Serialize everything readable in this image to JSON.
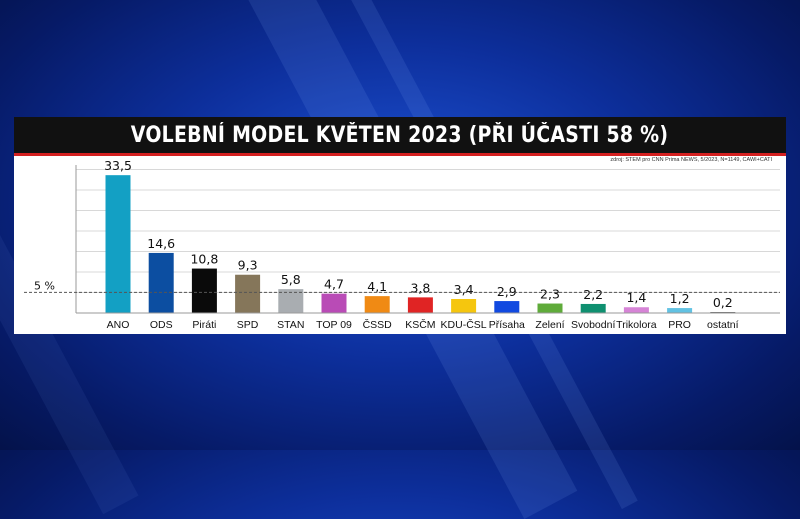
{
  "chart_data": {
    "type": "bar",
    "title": "VOLEBNÍ MODEL KVĚTEN 2023 (PŘI ÚČASTI 58 %)",
    "source": "zdroj: STEM pro CNN Prima NEWS, 5/2023, N=1149, CAWI+CATI",
    "categories": [
      "ANO",
      "ODS",
      "Piráti",
      "SPD",
      "STAN",
      "TOP 09",
      "ČSSD",
      "KSČM",
      "KDU-ČSL",
      "Přísaha",
      "Zelení",
      "Svobodní",
      "Trikolora",
      "PRO",
      "ostatní"
    ],
    "values": [
      33.5,
      14.6,
      10.8,
      9.3,
      5.8,
      4.7,
      4.1,
      3.8,
      3.4,
      2.9,
      2.3,
      2.2,
      1.4,
      1.2,
      0.2
    ],
    "value_labels": [
      "33,5",
      "14,6",
      "10,8",
      "9,3",
      "5,8",
      "4,7",
      "4,1",
      "3,8",
      "3,4",
      "2,9",
      "2,3",
      "2,2",
      "1,4",
      "1,2",
      "0,2"
    ],
    "colors": [
      "#13a0c4",
      "#0c4ea1",
      "#0a0a0a",
      "#85765a",
      "#a9adb1",
      "#b94bb6",
      "#f08a14",
      "#e02424",
      "#f5c60e",
      "#1149e0",
      "#5fab3a",
      "#0f9070",
      "#d684d6",
      "#62c2e3",
      "#666666"
    ],
    "threshold": {
      "value": 5,
      "label": "5 %"
    },
    "ylim": [
      0,
      35
    ],
    "grid": true,
    "xlabel": "",
    "ylabel": ""
  }
}
